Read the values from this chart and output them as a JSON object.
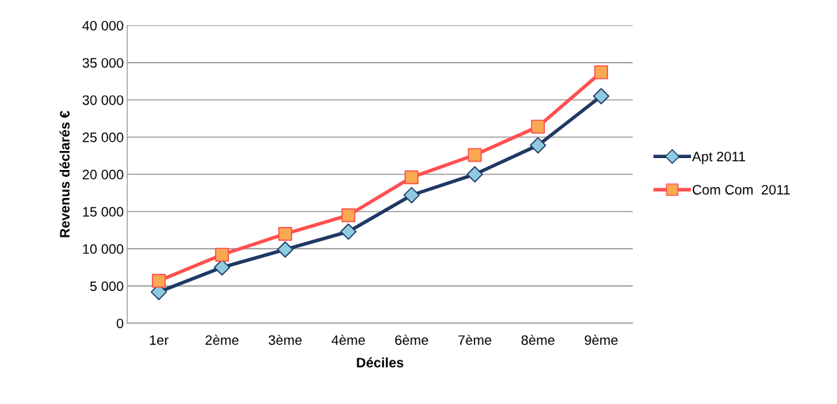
{
  "chart_data": {
    "type": "line",
    "xlabel": "Déciles",
    "ylabel": "Revenus déclarés €",
    "categories": [
      "1er",
      "2ème",
      "3ème",
      "4ème",
      "6ème",
      "7ème",
      "8ème",
      "9ème"
    ],
    "series": [
      {
        "name": "Apt 2011",
        "color": "#1f3864",
        "marker": "diamond",
        "colors": [
          "#8ecae0",
          "#8ecae0",
          "#8ecae0",
          "#8ecae0",
          "#8ecae0",
          "#8ecae0",
          "#8ecae0",
          "#8ecae0"
        ],
        "values": [
          4200,
          7500,
          9900,
          12300,
          17200,
          20000,
          23900,
          30500
        ]
      },
      {
        "name": "Com Com  2011",
        "color": "#ff4f4f",
        "marker": "square",
        "colors": [
          "#f9a94f",
          "#f9a94f",
          "#f9a94f",
          "#f9a94f",
          "#f9a94f",
          "#f9a94f",
          "#f9a94f",
          "#f9a94f"
        ],
        "values": [
          5700,
          9200,
          12000,
          14500,
          19600,
          22600,
          26400,
          33700
        ]
      }
    ],
    "ylim": [
      0,
      40000
    ],
    "yticks": [
      0,
      {
        "value": 5000,
        "label": "5 000"
      },
      {
        "value": 10000,
        "label": "10 000"
      },
      {
        "value": 15000,
        "label": "15 000"
      },
      {
        "value": 20000,
        "label": "20 000"
      },
      {
        "value": 25000,
        "label": "25 000"
      },
      {
        "value": 30000,
        "label": "30 000"
      },
      {
        "value": 35000,
        "label": "35 000"
      },
      {
        "value": 40000,
        "label": "40 000"
      }
    ],
    "grid": "y",
    "legend": "right",
    "line_style": "solid"
  }
}
